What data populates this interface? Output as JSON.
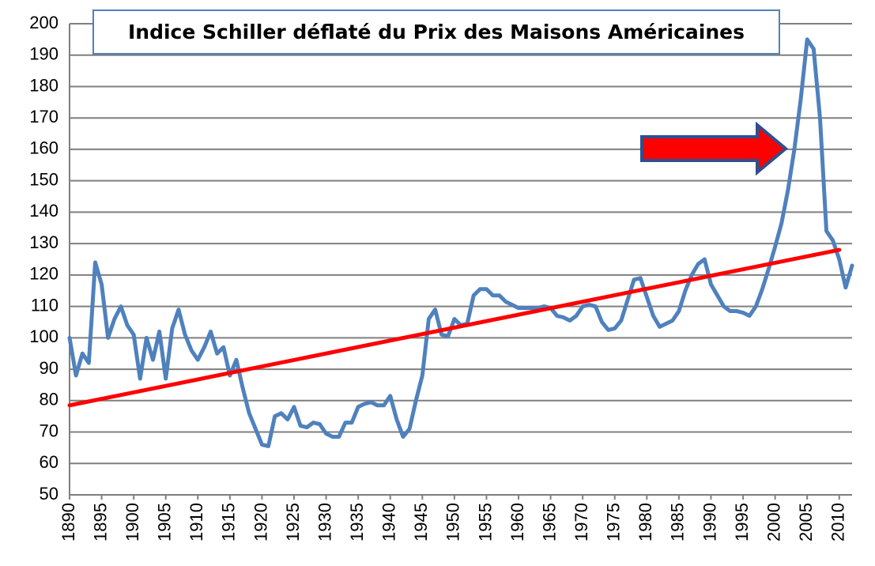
{
  "chart_data": {
    "type": "line",
    "title": "Indice Schiller déflaté du Prix des Maisons Américaines",
    "series": [
      {
        "color": "#4f81bd",
        "x": [
          1890,
          1891,
          1892,
          1893,
          1894,
          1895,
          1896,
          1897,
          1898,
          1899,
          1900,
          1901,
          1902,
          1903,
          1904,
          1905,
          1906,
          1907,
          1908,
          1909,
          1910,
          1911,
          1912,
          1913,
          1914,
          1915,
          1916,
          1917,
          1918,
          1919,
          1920,
          1921,
          1922,
          1923,
          1924,
          1925,
          1926,
          1927,
          1928,
          1929,
          1930,
          1931,
          1932,
          1933,
          1934,
          1935,
          1936,
          1937,
          1938,
          1939,
          1940,
          1941,
          1942,
          1943,
          1944,
          1945,
          1946,
          1947,
          1948,
          1949,
          1950,
          1951,
          1952,
          1953,
          1954,
          1955,
          1956,
          1957,
          1958,
          1959,
          1960,
          1961,
          1962,
          1963,
          1964,
          1965,
          1966,
          1967,
          1968,
          1969,
          1970,
          1971,
          1972,
          1973,
          1974,
          1975,
          1976,
          1977,
          1978,
          1979,
          1980,
          1981,
          1982,
          1983,
          1984,
          1985,
          1986,
          1987,
          1988,
          1989,
          1990,
          1991,
          1992,
          1993,
          1994,
          1995,
          1996,
          1997,
          1998,
          1999,
          2000,
          2001,
          2002,
          2003,
          2004,
          2005,
          2006,
          2007,
          2008,
          2009,
          2010,
          2011,
          2012
        ],
        "values": [
          100,
          88,
          95,
          92,
          124,
          117,
          100,
          106,
          110,
          104,
          101,
          87,
          100,
          93,
          102,
          87,
          103,
          109,
          101,
          96,
          93,
          97,
          102,
          95,
          97,
          88,
          93,
          84,
          76,
          71,
          66,
          65.5,
          75,
          76,
          74,
          78,
          72,
          71.5,
          73,
          72.5,
          69.5,
          68.5,
          68.5,
          73,
          73,
          78,
          79,
          79.5,
          78.5,
          78.5,
          81.5,
          74,
          68.5,
          71,
          80,
          88,
          106,
          109,
          101,
          100.5,
          106,
          104,
          104.5,
          113.5,
          115.5,
          115.5,
          113.5,
          113.5,
          111.5,
          110.5,
          109.5,
          109.5,
          109.5,
          109.5,
          110,
          109.5,
          107,
          106.5,
          105.5,
          107,
          110,
          110.5,
          110,
          105,
          102.5,
          103,
          105.5,
          112,
          118.5,
          119,
          113,
          107,
          103.5,
          104.5,
          105.5,
          108.5,
          115,
          120,
          123.5,
          125,
          117,
          113.5,
          110,
          108.5,
          108.5,
          108,
          107,
          110,
          115.5,
          122,
          129,
          136.5,
          147,
          160,
          176,
          195,
          192,
          170,
          134,
          131,
          125,
          116,
          123
        ]
      },
      {
        "color": "#ff0000",
        "x": [
          1890,
          2010
        ],
        "values": [
          78.5,
          128
        ]
      }
    ],
    "xlim": [
      1890,
      2012
    ],
    "xticks": [
      1890,
      1895,
      1900,
      1905,
      1910,
      1915,
      1920,
      1925,
      1930,
      1935,
      1940,
      1945,
      1950,
      1955,
      1960,
      1965,
      1970,
      1975,
      1980,
      1985,
      1990,
      1995,
      2000,
      2005,
      2010
    ],
    "ylim": [
      50,
      200
    ],
    "yticks": [
      50,
      60,
      70,
      80,
      90,
      100,
      110,
      120,
      130,
      140,
      150,
      160,
      170,
      180,
      190,
      200
    ],
    "grid": true
  }
}
